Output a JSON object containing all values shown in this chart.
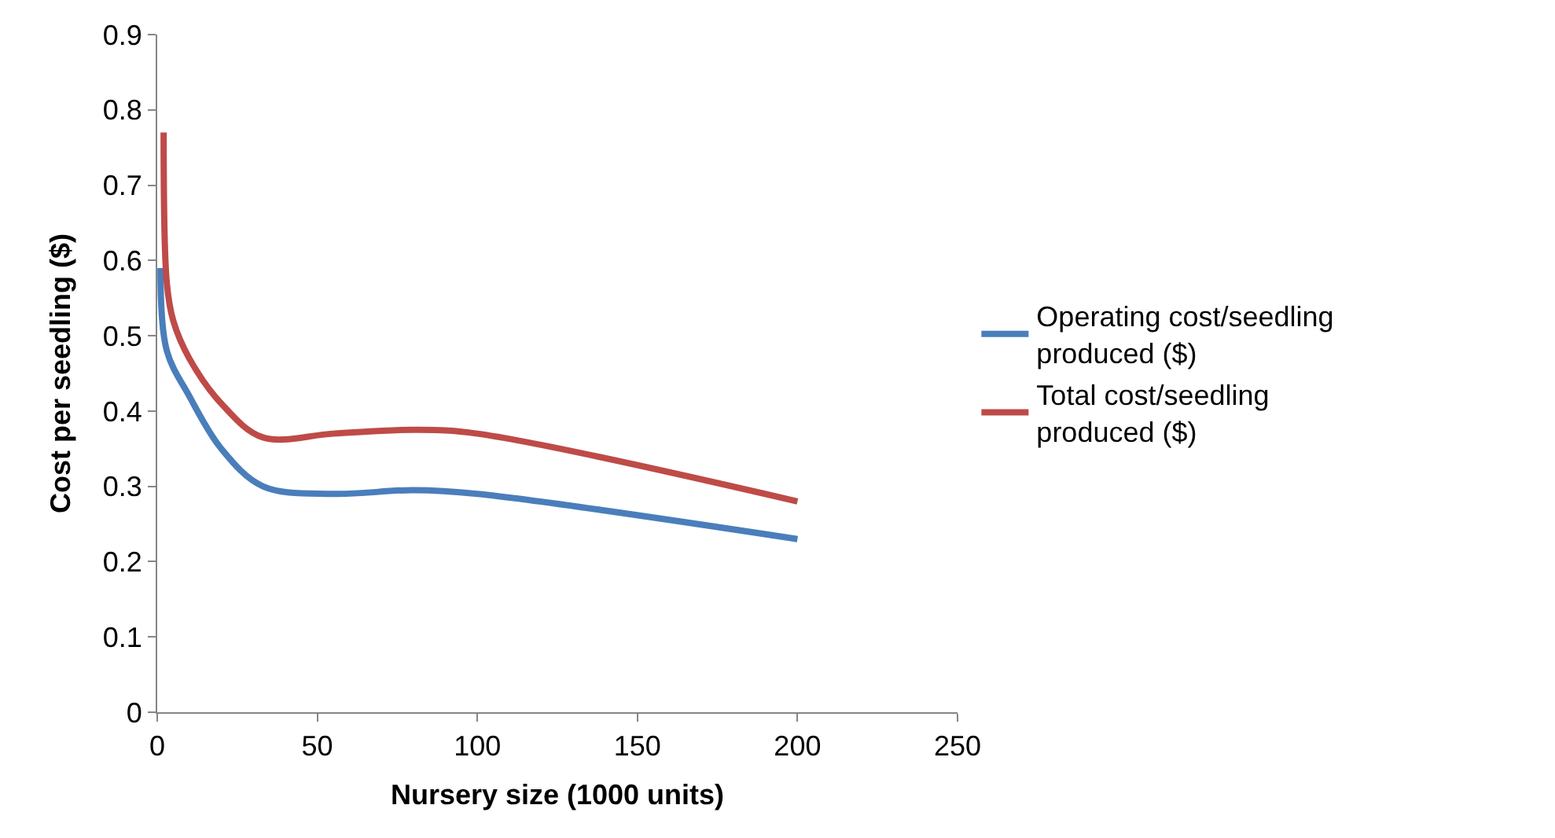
{
  "chart_data": {
    "type": "line",
    "xlabel": "Nursery size (1000 units)",
    "ylabel": "Cost per seedling ($)",
    "xlim": [
      0,
      250
    ],
    "xticks": [
      0,
      50,
      100,
      150,
      200,
      250
    ],
    "ylim": [
      0,
      0.9
    ],
    "yticks": [
      0,
      0.1,
      0.2,
      0.3,
      0.4,
      0.5,
      0.6,
      0.7,
      0.8,
      0.9
    ],
    "legend": "right",
    "marker": "none",
    "line_style": "solid",
    "series": [
      {
        "name": "Operating cost/seedling produced ($)",
        "color": "#4a7ebb",
        "x": [
          1,
          3,
          10,
          20,
          33,
          55,
          80,
          100,
          200
        ],
        "values": [
          0.59,
          0.48,
          0.42,
          0.35,
          0.3,
          0.29,
          0.295,
          0.29,
          0.23
        ]
      },
      {
        "name": "Total cost/seedling produced ($)",
        "color": "#be4b48",
        "x": [
          2,
          3,
          5,
          10,
          20,
          33,
          55,
          80,
          100,
          200
        ],
        "values": [
          0.77,
          0.57,
          0.52,
          0.47,
          0.41,
          0.365,
          0.37,
          0.375,
          0.37,
          0.28
        ]
      }
    ]
  }
}
